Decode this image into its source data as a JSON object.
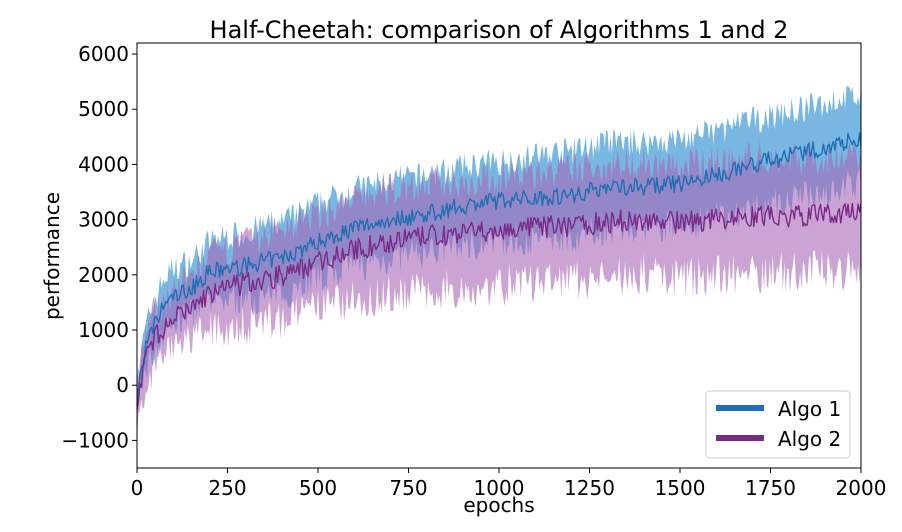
{
  "chart_data": {
    "type": "line",
    "title": "Half-Cheetah: comparison of Algorithms 1 and 2",
    "xlabel": "epochs",
    "ylabel": "performance",
    "xlim": [
      0,
      2000
    ],
    "ylim": [
      -1500,
      6200
    ],
    "xticks": [
      0,
      250,
      500,
      750,
      1000,
      1250,
      1500,
      1750,
      2000
    ],
    "yticks": [
      -1000,
      0,
      1000,
      2000,
      3000,
      4000,
      5000,
      6000
    ],
    "xtick_labels": [
      "0",
      "250",
      "500",
      "750",
      "1000",
      "1250",
      "1500",
      "1750",
      "2000"
    ],
    "ytick_labels": [
      "−1000",
      "0",
      "1000",
      "2000",
      "3000",
      "4000",
      "5000",
      "6000"
    ],
    "grid": false,
    "legend_position": "lower-right",
    "series": [
      {
        "name": "Algo 1",
        "color": "#1f6fb4",
        "band_color": "#4a9fd8",
        "x": [
          0,
          10,
          25,
          50,
          75,
          100,
          150,
          200,
          250,
          300,
          350,
          400,
          450,
          500,
          600,
          700,
          800,
          900,
          1000,
          1100,
          1200,
          1300,
          1400,
          1500,
          1600,
          1700,
          1800,
          1900,
          1950,
          2000
        ],
        "mean": [
          -300,
          200,
          700,
          1100,
          1450,
          1600,
          1750,
          2050,
          2100,
          2150,
          2250,
          2300,
          2450,
          2600,
          2850,
          3000,
          3100,
          3250,
          3350,
          3400,
          3450,
          3600,
          3600,
          3650,
          3800,
          4000,
          4150,
          4300,
          4400,
          4450
        ],
        "lower": [
          -600,
          -100,
          300,
          650,
          950,
          1100,
          1300,
          1500,
          1550,
          1550,
          1600,
          1650,
          1800,
          1950,
          2150,
          2300,
          2400,
          2550,
          2600,
          2650,
          2700,
          2800,
          2850,
          2900,
          3000,
          3200,
          3350,
          3500,
          3600,
          3650
        ],
        "upper": [
          0,
          550,
          1050,
          1550,
          1950,
          2100,
          2250,
          2600,
          2700,
          2750,
          2900,
          2950,
          3100,
          3300,
          3550,
          3700,
          3800,
          3950,
          4050,
          4150,
          4250,
          4400,
          4400,
          4450,
          4600,
          4800,
          4950,
          5100,
          5200,
          5250
        ]
      },
      {
        "name": "Algo 2",
        "color": "#7b2a8a",
        "band_color": "#a868b8",
        "x": [
          0,
          10,
          25,
          50,
          75,
          100,
          150,
          200,
          250,
          300,
          350,
          400,
          450,
          500,
          600,
          700,
          800,
          900,
          1000,
          1100,
          1200,
          1300,
          1400,
          1500,
          1600,
          1700,
          1800,
          1900,
          1950,
          2000
        ],
        "mean": [
          -350,
          100,
          500,
          850,
          1050,
          1200,
          1400,
          1650,
          1750,
          1850,
          1900,
          2000,
          2100,
          2250,
          2450,
          2600,
          2700,
          2750,
          2800,
          2850,
          2900,
          2950,
          3000,
          2950,
          3000,
          3050,
          3050,
          3100,
          3100,
          3150
        ],
        "lower": [
          -700,
          -250,
          100,
          350,
          550,
          700,
          850,
          1000,
          1050,
          1100,
          1150,
          1200,
          1300,
          1400,
          1550,
          1650,
          1700,
          1750,
          1800,
          1850,
          1900,
          1950,
          2000,
          1950,
          2000,
          2050,
          2050,
          2100,
          2100,
          2150
        ],
        "upper": [
          50,
          450,
          900,
          1350,
          1550,
          1700,
          1950,
          2300,
          2450,
          2600,
          2700,
          2850,
          2950,
          3100,
          3350,
          3550,
          3650,
          3700,
          3750,
          3850,
          3900,
          4000,
          4050,
          3950,
          4050,
          4100,
          4100,
          4150,
          4150,
          4200
        ]
      }
    ]
  }
}
